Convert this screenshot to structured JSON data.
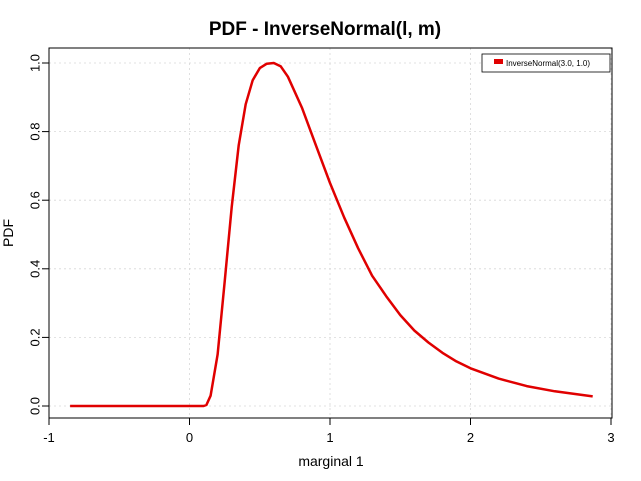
{
  "chart_data": {
    "type": "line",
    "title": "PDF - InverseNormal(l, m)",
    "xlabel": "marginal 1",
    "ylabel": "PDF",
    "xlim": [
      -1,
      3
    ],
    "ylim": [
      0,
      1
    ],
    "x_ticks": [
      "-1",
      "0",
      "1",
      "2",
      "3"
    ],
    "y_ticks": [
      "0.0",
      "0.2",
      "0.4",
      "0.6",
      "0.8",
      "1.0"
    ],
    "grid": true,
    "legend_position": "top-right",
    "series": [
      {
        "name": "InverseNormal(3.0, 1.0)",
        "color": "#e00000",
        "x": [
          -0.85,
          0.0,
          0.1,
          0.12,
          0.15,
          0.2,
          0.25,
          0.3,
          0.35,
          0.4,
          0.45,
          0.5,
          0.55,
          0.6,
          0.65,
          0.7,
          0.8,
          0.9,
          1.0,
          1.1,
          1.2,
          1.3,
          1.4,
          1.5,
          1.6,
          1.7,
          1.8,
          1.9,
          2.0,
          2.2,
          2.4,
          2.6,
          2.87
        ],
        "y": [
          0.0,
          0.0,
          0.0,
          0.003,
          0.03,
          0.15,
          0.36,
          0.58,
          0.76,
          0.88,
          0.95,
          0.985,
          0.998,
          1.0,
          0.99,
          0.96,
          0.87,
          0.76,
          0.65,
          0.55,
          0.46,
          0.38,
          0.32,
          0.265,
          0.22,
          0.185,
          0.155,
          0.13,
          0.11,
          0.08,
          0.058,
          0.043,
          0.028
        ]
      }
    ]
  }
}
